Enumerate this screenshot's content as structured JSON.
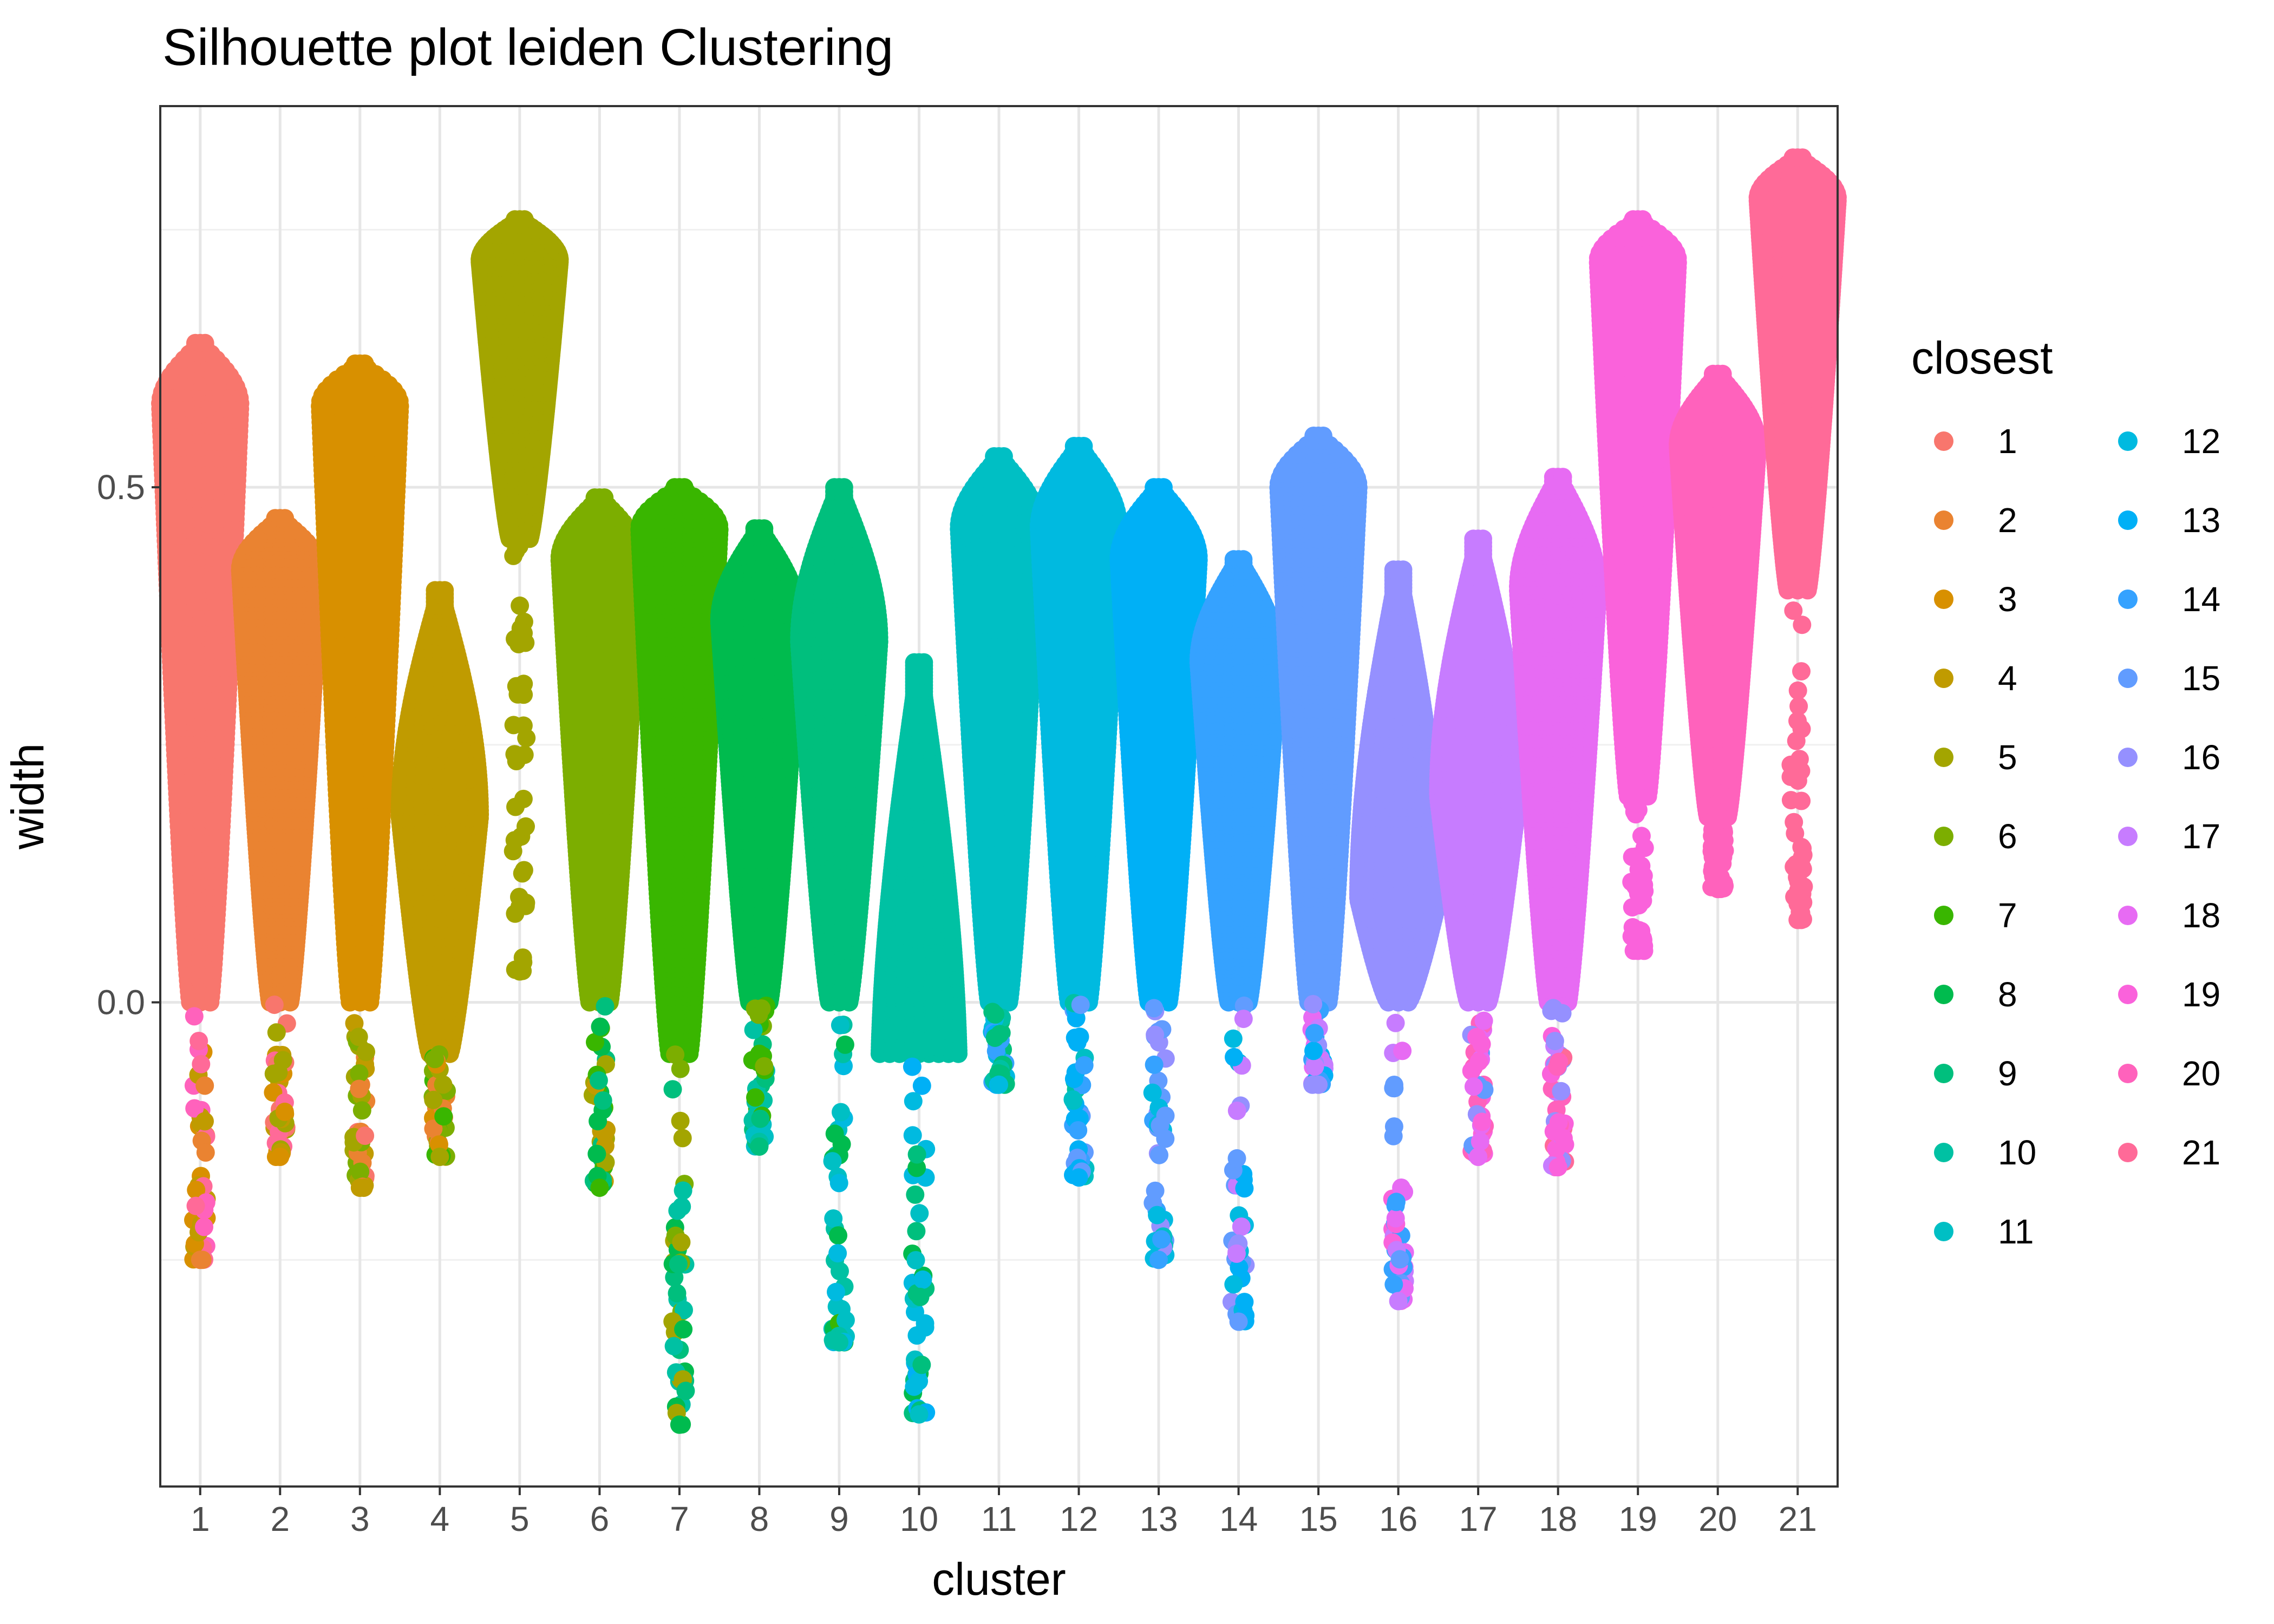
{
  "chart_data": {
    "type": "scatter",
    "subtype": "silhouette-beeswarm",
    "title": "Silhouette plot leiden Clustering",
    "xlabel": "cluster",
    "ylabel": "width",
    "categories": [
      "1",
      "2",
      "3",
      "4",
      "5",
      "6",
      "7",
      "8",
      "9",
      "10",
      "11",
      "12",
      "13",
      "14",
      "15",
      "16",
      "17",
      "18",
      "19",
      "20",
      "21"
    ],
    "ylim": [
      -0.47,
      0.87
    ],
    "yticks": [
      0.5,
      0.0
    ],
    "ytick_labels": [
      "0.5",
      "0.0"
    ],
    "grid": true,
    "legend": {
      "title": "closest",
      "placement": "right",
      "columns": 2,
      "entries": [
        "1",
        "2",
        "3",
        "4",
        "5",
        "6",
        "7",
        "8",
        "9",
        "10",
        "11",
        "12",
        "13",
        "14",
        "15",
        "16",
        "17",
        "18",
        "19",
        "20",
        "21"
      ]
    },
    "series": [
      {
        "cluster": "1",
        "color": "#F8766D",
        "max": 0.64,
        "bulk_min": 0.0,
        "min": -0.25,
        "peak_at": 0.58
      },
      {
        "cluster": "2",
        "color": "#EA8331",
        "max": 0.47,
        "bulk_min": 0.0,
        "min": -0.15,
        "peak_at": 0.42
      },
      {
        "cluster": "3",
        "color": "#D89000",
        "max": 0.62,
        "bulk_min": 0.0,
        "min": -0.18,
        "peak_at": 0.58
      },
      {
        "cluster": "4",
        "color": "#C09B00",
        "max": 0.4,
        "bulk_min": -0.05,
        "min": -0.15,
        "peak_at": 0.18
      },
      {
        "cluster": "5",
        "color": "#A3A500",
        "max": 0.76,
        "bulk_min": 0.45,
        "min": 0.03,
        "peak_at": 0.72
      },
      {
        "cluster": "6",
        "color": "#7CAE00",
        "max": 0.49,
        "bulk_min": 0.0,
        "min": -0.18,
        "peak_at": 0.43
      },
      {
        "cluster": "7",
        "color": "#39B600",
        "max": 0.5,
        "bulk_min": -0.05,
        "min": -0.41,
        "peak_at": 0.46
      },
      {
        "cluster": "8",
        "color": "#00BB4E",
        "max": 0.46,
        "bulk_min": 0.0,
        "min": -0.14,
        "peak_at": 0.37
      },
      {
        "cluster": "9",
        "color": "#00BF7D",
        "max": 0.5,
        "bulk_min": 0.0,
        "min": -0.33,
        "peak_at": 0.35
      },
      {
        "cluster": "10",
        "color": "#00C1A3",
        "max": 0.33,
        "bulk_min": -0.05,
        "min": -0.4,
        "peak_at": -0.1
      },
      {
        "cluster": "11",
        "color": "#00BFC4",
        "max": 0.53,
        "bulk_min": 0.0,
        "min": -0.08,
        "peak_at": 0.46
      },
      {
        "cluster": "12",
        "color": "#00BAE0",
        "max": 0.54,
        "bulk_min": 0.0,
        "min": -0.17,
        "peak_at": 0.46
      },
      {
        "cluster": "13",
        "color": "#00B0F6",
        "max": 0.5,
        "bulk_min": 0.0,
        "min": -0.25,
        "peak_at": 0.43
      },
      {
        "cluster": "14",
        "color": "#35A2FF",
        "max": 0.43,
        "bulk_min": 0.0,
        "min": -0.31,
        "peak_at": 0.33
      },
      {
        "cluster": "15",
        "color": "#619CFF",
        "max": 0.55,
        "bulk_min": 0.0,
        "min": -0.08,
        "peak_at": 0.5
      },
      {
        "cluster": "16",
        "color": "#9590FF",
        "max": 0.42,
        "bulk_min": 0.0,
        "min": -0.29,
        "peak_at": 0.1
      },
      {
        "cluster": "17",
        "color": "#C77CFF",
        "max": 0.45,
        "bulk_min": 0.0,
        "min": -0.15,
        "peak_at": 0.2
      },
      {
        "cluster": "18",
        "color": "#E76BF3",
        "max": 0.51,
        "bulk_min": 0.0,
        "min": -0.16,
        "peak_at": 0.4
      },
      {
        "cluster": "19",
        "color": "#FA62DB",
        "max": 0.76,
        "bulk_min": 0.2,
        "min": 0.05,
        "peak_at": 0.72
      },
      {
        "cluster": "20",
        "color": "#FF62BC",
        "max": 0.61,
        "bulk_min": 0.18,
        "min": 0.11,
        "peak_at": 0.54
      },
      {
        "cluster": "21",
        "color": "#FF6A98",
        "max": 0.82,
        "bulk_min": 0.4,
        "min": 0.08,
        "peak_at": 0.78
      }
    ]
  }
}
